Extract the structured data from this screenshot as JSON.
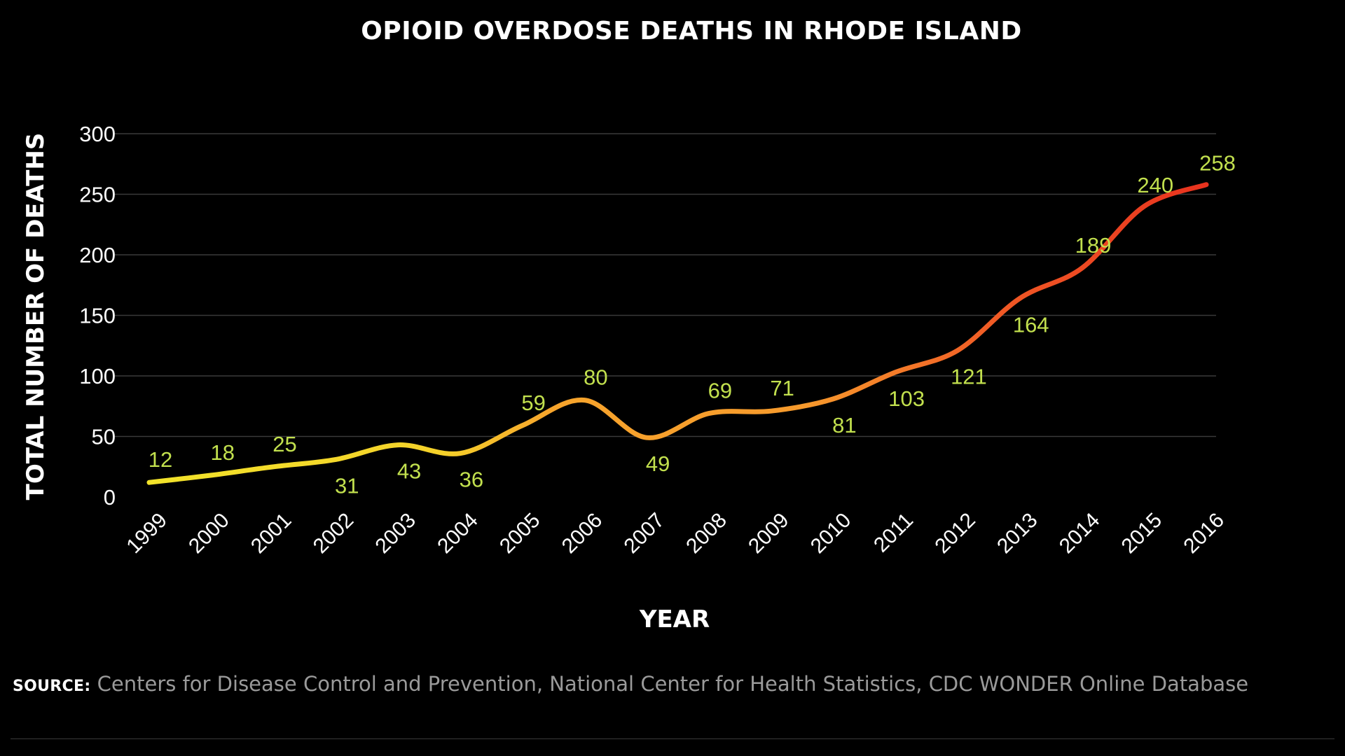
{
  "chart_data": {
    "type": "line",
    "title": "OPIOID OVERDOSE DEATHS IN RHODE ISLAND",
    "xlabel": "YEAR",
    "ylabel": "TOTAL NUMBER OF DEATHS",
    "ylim": [
      0,
      300
    ],
    "yticks": [
      "0",
      "50",
      "100",
      "150",
      "200",
      "250",
      "300"
    ],
    "grid": true,
    "categories": [
      "1999",
      "2000",
      "2001",
      "2002",
      "2003",
      "2004",
      "2005",
      "2006",
      "2007",
      "2008",
      "2009",
      "2010",
      "2011",
      "2012",
      "2013",
      "2014",
      "2015",
      "2016"
    ],
    "series": [
      {
        "values": [
          12,
          18,
          25,
          31,
          43,
          36,
          59,
          80,
          49,
          69,
          71,
          81,
          103,
          121,
          164,
          189,
          240,
          258
        ],
        "labels": [
          "12",
          "18",
          "25",
          "31",
          "43",
          "36",
          "59",
          "80",
          "49",
          "69",
          "71",
          "81",
          "103",
          "121",
          "164",
          "189",
          "240",
          "258"
        ]
      }
    ],
    "colors": {
      "line_start": "#f2e32a",
      "line_mid": "#f7a52c",
      "line_end": "#e8321e",
      "data_label": "#c2e04e",
      "text": "#ffffff",
      "grid": "#3a3a3a",
      "background": "#000000"
    }
  },
  "source": {
    "label": "SOURCE:",
    "text": "Centers for Disease Control and Prevention, National Center for Health Statistics, CDC WONDER Online Database"
  }
}
